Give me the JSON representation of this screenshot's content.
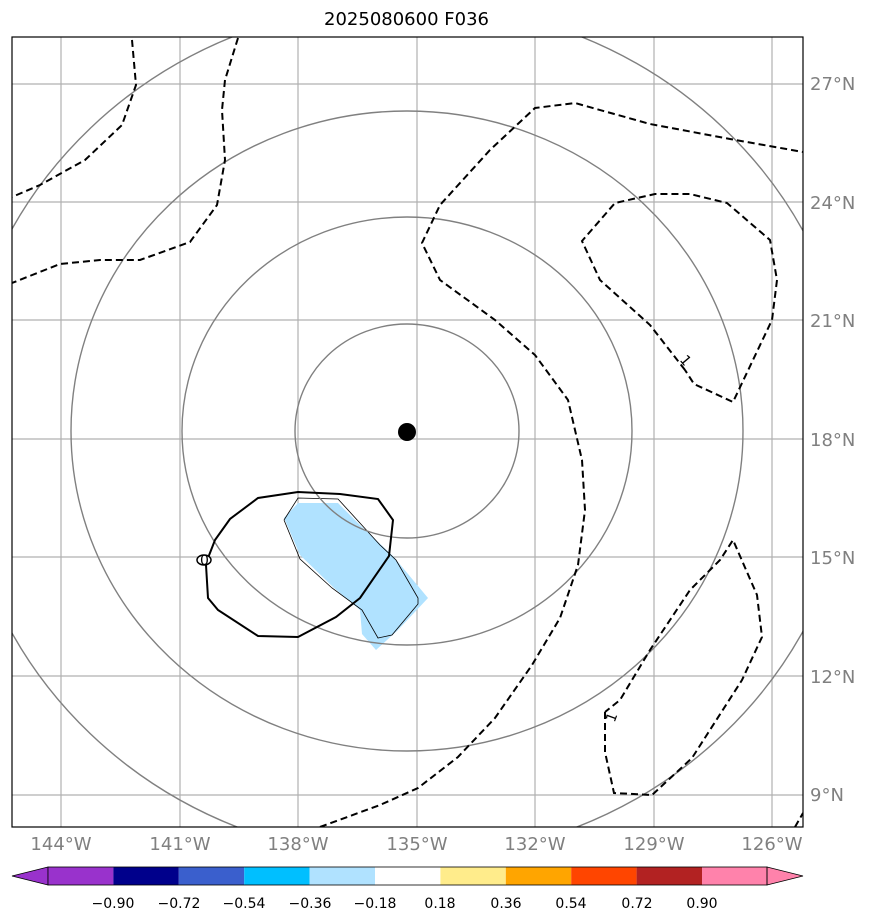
{
  "title": "2025080600 F036",
  "map": {
    "lat_ticks": [
      "9°N",
      "12°N",
      "15°N",
      "18°N",
      "21°N",
      "24°N",
      "27°N"
    ],
    "lon_ticks": [
      "144°W",
      "141°W",
      "138°W",
      "135°W",
      "132°W",
      "129°W",
      "126°W"
    ],
    "contour_labels": [
      "1",
      "1",
      "0"
    ],
    "storm_center": {
      "lat": 18.2,
      "lon": "135.2°W"
    }
  },
  "colorbar": {
    "ticks": [
      "−0.90",
      "−0.72",
      "−0.54",
      "−0.36",
      "−0.18",
      "0.18",
      "0.36",
      "0.54",
      "0.72",
      "0.90"
    ],
    "colors": [
      "#9932cc",
      "#00008b",
      "#3a5fcd",
      "#00bfff",
      "#b0e2ff",
      "#ffffff",
      "#ffec8b",
      "#ffa500",
      "#ff4500",
      "#b22222",
      "#ff82ab"
    ]
  }
}
